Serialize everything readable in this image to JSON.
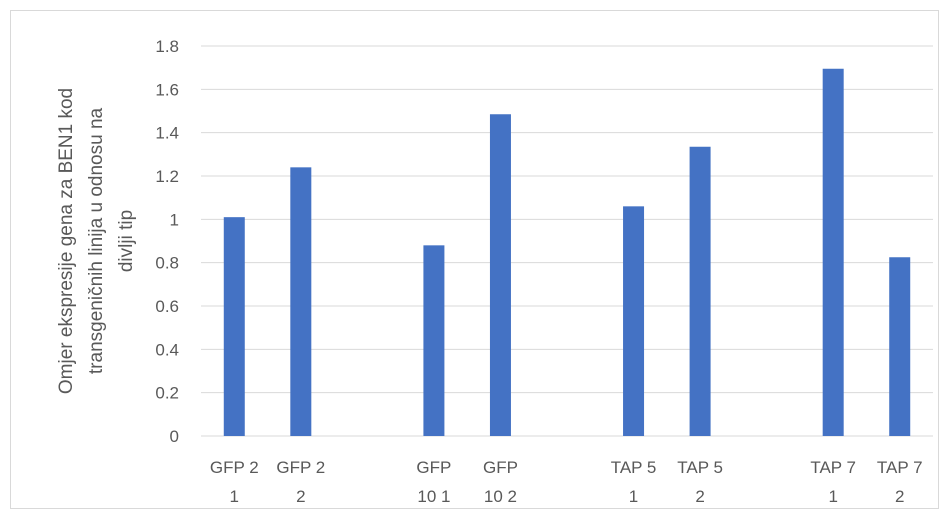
{
  "chart_data": {
    "type": "bar",
    "categories": [
      [
        "GFP 2",
        "1"
      ],
      [
        "GFP 2",
        "2"
      ],
      [
        "",
        ""
      ],
      [
        "GFP",
        "10 1"
      ],
      [
        "GFP",
        "10 2"
      ],
      [
        "",
        ""
      ],
      [
        "TAP 5",
        "1"
      ],
      [
        "TAP 5",
        "2"
      ],
      [
        "",
        ""
      ],
      [
        "TAP 7",
        "1"
      ],
      [
        "TAP 7",
        "2"
      ]
    ],
    "values": [
      1.01,
      1.24,
      null,
      0.88,
      1.485,
      null,
      1.06,
      1.335,
      null,
      1.695,
      0.825
    ],
    "title": "",
    "xlabel": "",
    "ylabel_lines": [
      "Omjer ekspresije gena za BEN1 kod",
      "transgeničnih linija u odnosu na",
      "divlji tip"
    ],
    "ylim": [
      0,
      1.8
    ],
    "yticks": [
      "0",
      "0.2",
      "0.4",
      "0.6",
      "0.8",
      "1",
      "1.2",
      "1.4",
      "1.6",
      "1.8"
    ],
    "grid": true,
    "legend": "none",
    "colors": {
      "bar": "#4472c4",
      "grid": "#d9d9d9",
      "text": "#595959"
    }
  }
}
